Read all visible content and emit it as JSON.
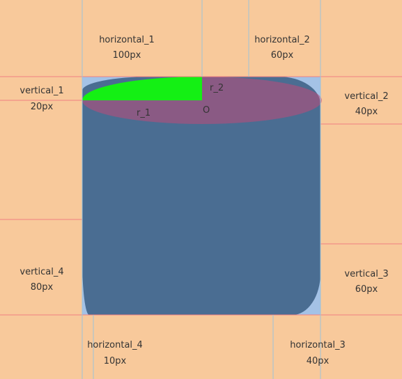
{
  "colors": {
    "background": "#f8c99b",
    "box": "#a4c2e6",
    "shape": "#4a6d92",
    "ellipse": "#c04a78",
    "quarter": "#14f014",
    "guide_red": "#f08080",
    "guide_blue": "#9ec4d8"
  },
  "labels": {
    "horizontal_1": {
      "name": "horizontal_1",
      "value": "100px"
    },
    "horizontal_2": {
      "name": "horizontal_2",
      "value": "60px"
    },
    "horizontal_3": {
      "name": "horizontal_3",
      "value": "40px"
    },
    "horizontal_4": {
      "name": "horizontal_4",
      "value": "10px"
    },
    "vertical_1": {
      "name": "vertical_1",
      "value": "20px"
    },
    "vertical_2": {
      "name": "vertical_2",
      "value": "40px"
    },
    "vertical_3": {
      "name": "vertical_3",
      "value": "60px"
    },
    "vertical_4": {
      "name": "vertical_4",
      "value": "80px"
    }
  },
  "marks": {
    "r1": "r_1",
    "r2": "r_2",
    "origin": "O"
  }
}
